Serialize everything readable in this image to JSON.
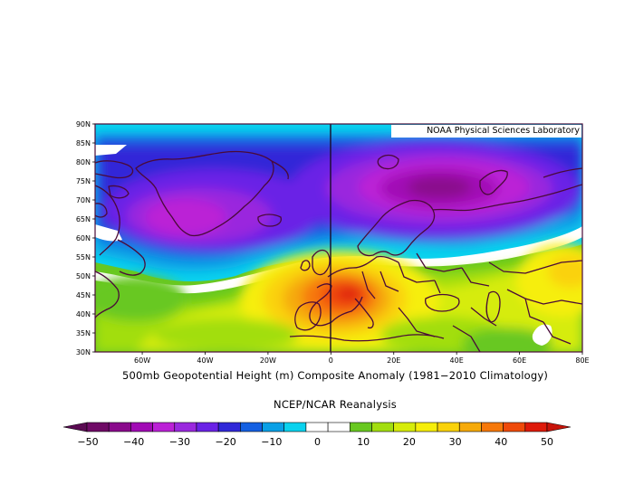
{
  "figure": {
    "title": "500mb Geopotential Height (m) Composite Anomaly (1981−2010 Climatology)",
    "source": "NCEP/NCAR Reanalysis",
    "lab_label": "NOAA Physical Sciences Laboratory"
  },
  "map": {
    "projection": "cylindrical-equidistant",
    "lon_range": [
      -75,
      80
    ],
    "lat_range": [
      30,
      90
    ],
    "lat_ticks": [
      "30N",
      "35N",
      "40N",
      "45N",
      "50N",
      "55N",
      "60N",
      "65N",
      "70N",
      "75N",
      "80N",
      "85N",
      "90N"
    ],
    "lon_ticks": [
      {
        "lon": -60,
        "label": "60W"
      },
      {
        "lon": -40,
        "label": "40W"
      },
      {
        "lon": -20,
        "label": "20W"
      },
      {
        "lon": 0,
        "label": "0"
      },
      {
        "lon": 20,
        "label": "20E"
      },
      {
        "lon": 40,
        "label": "40E"
      },
      {
        "lon": 60,
        "label": "60E"
      },
      {
        "lon": 80,
        "label": "80E"
      }
    ],
    "field": "anomaly",
    "centers": [
      {
        "lon": 35,
        "lat": 74,
        "value": -45,
        "type": "low"
      },
      {
        "lon": -50,
        "lat": 67,
        "value": -35,
        "type": "low"
      },
      {
        "lon": 8,
        "lat": 45,
        "value": 47,
        "type": "high"
      },
      {
        "lon": 70,
        "lat": 52,
        "value": 25,
        "type": "high"
      }
    ]
  },
  "colorbar": {
    "colors": [
      "#6f0a66",
      "#8a0a8c",
      "#a10ab5",
      "#bb20d6",
      "#9a28de",
      "#6a22e6",
      "#3028d8",
      "#1460e2",
      "#0aa0e6",
      "#0ad2ee",
      "#ffffff",
      "#ffffff",
      "#68c820",
      "#a2de10",
      "#d6ec0a",
      "#f6ee0a",
      "#fad20a",
      "#f6aa0a",
      "#f6780a",
      "#ef4a0a",
      "#de1a0a"
    ],
    "labels": [
      "−50",
      "−40",
      "−30",
      "−20",
      "−10",
      "0",
      "10",
      "20",
      "30",
      "40",
      "50"
    ]
  }
}
